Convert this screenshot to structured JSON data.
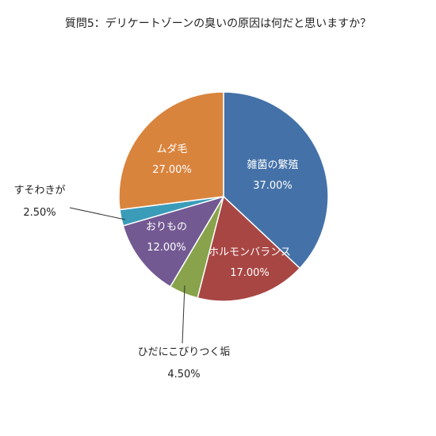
{
  "chart_data": {
    "type": "pie",
    "title": "質問5：デリケートゾーンの臭いの原因は何だと思いますか？",
    "slices": [
      {
        "label": "雑菌の繁殖",
        "value": 37.0,
        "value_label": "37.00%",
        "color": "#4472a8",
        "label_position": "inside"
      },
      {
        "label": "ホルモンバランス",
        "value": 17.0,
        "value_label": "17.00%",
        "color": "#a84644",
        "label_position": "inside"
      },
      {
        "label": "ひだにこびりつく垢",
        "value": 4.5,
        "value_label": "4.50%",
        "color": "#88a34b",
        "label_position": "outside"
      },
      {
        "label": "おりもの",
        "value": 12.0,
        "value_label": "12.00%",
        "color": "#735992",
        "label_position": "inside"
      },
      {
        "label": "すそわきが",
        "value": 2.5,
        "value_label": "2.50%",
        "color": "#3a9cb9",
        "label_position": "outside"
      },
      {
        "label": "ムダ毛",
        "value": 27.0,
        "value_label": "27.00%",
        "color": "#d9843d",
        "label_position": "inside"
      }
    ],
    "start_angle": "12 o'clock",
    "direction": "clockwise",
    "legend": "none"
  }
}
